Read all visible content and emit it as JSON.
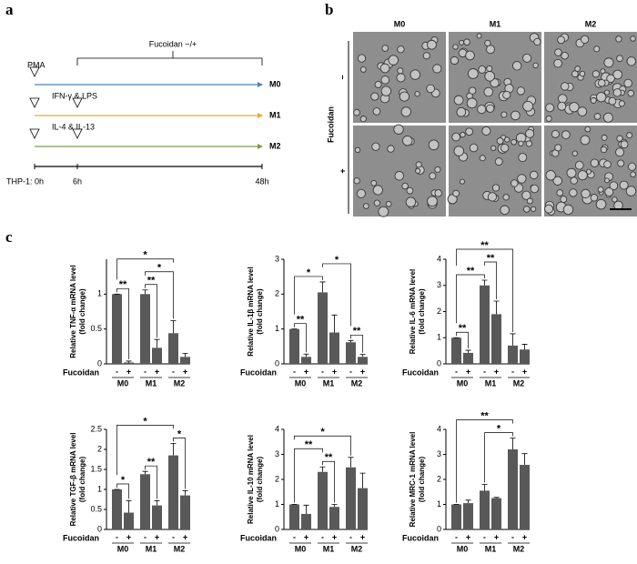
{
  "panel_labels": [
    "a",
    "b",
    "c"
  ],
  "timeline": {
    "treatment": "Fucoidan −/+",
    "rows": [
      {
        "reagent": "PMA",
        "label": "M0",
        "color": "#4f81bd"
      },
      {
        "reagent": "IFN-γ & LPS",
        "label": "M1",
        "color": "#f0a830"
      },
      {
        "reagent": "IL-4 & IL-13",
        "label": "M2",
        "color": "#77a046"
      }
    ],
    "times": [
      "THP-1: 0h",
      "6h",
      "48h"
    ]
  },
  "micrographs": {
    "columns": [
      "M0",
      "M1",
      "M2"
    ],
    "rows": [
      "−",
      "+"
    ],
    "row_title": "Fucoidan"
  },
  "chart_data": [
    {
      "type": "bar",
      "y_label": [
        "Relative TNF-α mRNA level",
        "(fold change)"
      ],
      "treatment_label": "Fucoidan",
      "categories": [
        "-",
        "+",
        "-",
        "+",
        "-",
        "+"
      ],
      "groups": [
        "M0",
        "M1",
        "M2"
      ],
      "values": [
        1.0,
        0.02,
        1.0,
        0.23,
        0.44,
        0.1
      ],
      "errors": [
        0,
        0.02,
        0.06,
        0.12,
        0.18,
        0.05
      ],
      "color": "#595959",
      "ylim": [
        0,
        1.5
      ],
      "yticks": [
        0,
        0.5,
        1
      ],
      "significance": [
        {
          "from": 0,
          "to": 1,
          "label": "**"
        },
        {
          "from": 2,
          "to": 3,
          "label": "**"
        },
        {
          "from": 2,
          "to": 4,
          "label": "*"
        },
        {
          "from": 0,
          "to": 4,
          "label": "*"
        }
      ]
    },
    {
      "type": "bar",
      "y_label": [
        "Relative IL-1β mRNA level",
        "(fold change)"
      ],
      "treatment_label": "Fucoidan",
      "categories": [
        "-",
        "+",
        "-",
        "+",
        "-",
        "+"
      ],
      "groups": [
        "M0",
        "M1",
        "M2"
      ],
      "values": [
        1.0,
        0.2,
        2.05,
        0.9,
        0.62,
        0.2
      ],
      "errors": [
        0,
        0.08,
        0.3,
        0.5,
        0.05,
        0.07
      ],
      "color": "#595959",
      "ylim": [
        0,
        3
      ],
      "yticks": [
        0,
        1,
        2,
        3
      ],
      "significance": [
        {
          "from": 0,
          "to": 1,
          "label": "**"
        },
        {
          "from": 4,
          "to": 5,
          "label": "**"
        },
        {
          "from": 0,
          "to": 2,
          "label": "*"
        },
        {
          "from": 2,
          "to": 4,
          "label": "*"
        }
      ]
    },
    {
      "type": "bar",
      "y_label": [
        "Relative IL-6 mRNA level",
        "(fold change)"
      ],
      "treatment_label": "Fucoidan",
      "categories": [
        "-",
        "+",
        "-",
        "+",
        "-",
        "+"
      ],
      "groups": [
        "M0",
        "M1",
        "M2"
      ],
      "values": [
        1.0,
        0.42,
        3.0,
        1.9,
        0.7,
        0.55
      ],
      "errors": [
        0,
        0.1,
        0.2,
        0.5,
        0.45,
        0.2
      ],
      "color": "#595959",
      "ylim": [
        0,
        4
      ],
      "yticks": [
        0,
        1,
        2,
        3,
        4
      ],
      "significance": [
        {
          "from": 0,
          "to": 1,
          "label": "**"
        },
        {
          "from": 0,
          "to": 2,
          "label": "**"
        },
        {
          "from": 2,
          "to": 3,
          "label": "**"
        },
        {
          "from": 0,
          "to": 4,
          "label": "**"
        }
      ]
    },
    {
      "type": "bar",
      "y_label": [
        "Relative TGF-β mRNA level",
        "(fold change)"
      ],
      "treatment_label": "Fucoidan",
      "categories": [
        "-",
        "+",
        "-",
        "+",
        "-",
        "+"
      ],
      "groups": [
        "M0",
        "M1",
        "M2"
      ],
      "values": [
        1.0,
        0.42,
        1.38,
        0.6,
        1.85,
        0.85
      ],
      "errors": [
        0,
        0.3,
        0.07,
        0.12,
        0.3,
        0.12
      ],
      "color": "#595959",
      "ylim": [
        0,
        2.5
      ],
      "yticks": [
        0,
        0.5,
        1,
        1.5,
        2,
        2.5
      ],
      "significance": [
        {
          "from": 0,
          "to": 1,
          "label": "*"
        },
        {
          "from": 2,
          "to": 3,
          "label": "**"
        },
        {
          "from": 4,
          "to": 5,
          "label": "*"
        },
        {
          "from": 0,
          "to": 4,
          "label": "*"
        }
      ]
    },
    {
      "type": "bar",
      "y_label": [
        "Relative IL-10 mRNA level",
        "(fold change)"
      ],
      "treatment_label": "Fucoidan",
      "categories": [
        "-",
        "+",
        "-",
        "+",
        "-",
        "+"
      ],
      "groups": [
        "M0",
        "M1",
        "M2"
      ],
      "values": [
        1.0,
        0.62,
        2.3,
        0.9,
        2.48,
        1.65
      ],
      "errors": [
        0,
        0.35,
        0.2,
        0.1,
        0.4,
        0.6
      ],
      "color": "#595959",
      "ylim": [
        0,
        4
      ],
      "yticks": [
        0,
        1,
        2,
        3,
        4
      ],
      "significance": [
        {
          "from": 2,
          "to": 3,
          "label": "**"
        },
        {
          "from": 0,
          "to": 2,
          "label": "**"
        },
        {
          "from": 0,
          "to": 4,
          "label": "*"
        }
      ]
    },
    {
      "type": "bar",
      "y_label": [
        "Relative MRC-1 mRNA level",
        "(fold change)"
      ],
      "treatment_label": "Fucoidan",
      "categories": [
        "-",
        "+",
        "-",
        "+",
        "-",
        "+"
      ],
      "groups": [
        "M0",
        "M1",
        "M2"
      ],
      "values": [
        1.0,
        1.05,
        1.55,
        1.25,
        3.2,
        2.58
      ],
      "errors": [
        0,
        0.12,
        0.25,
        0.03,
        0.45,
        0.45
      ],
      "color": "#595959",
      "ylim": [
        0,
        4
      ],
      "yticks": [
        0,
        1,
        2,
        3,
        4
      ],
      "significance": [
        {
          "from": 2,
          "to": 4,
          "label": "*"
        },
        {
          "from": 0,
          "to": 4,
          "label": "**"
        }
      ]
    }
  ]
}
